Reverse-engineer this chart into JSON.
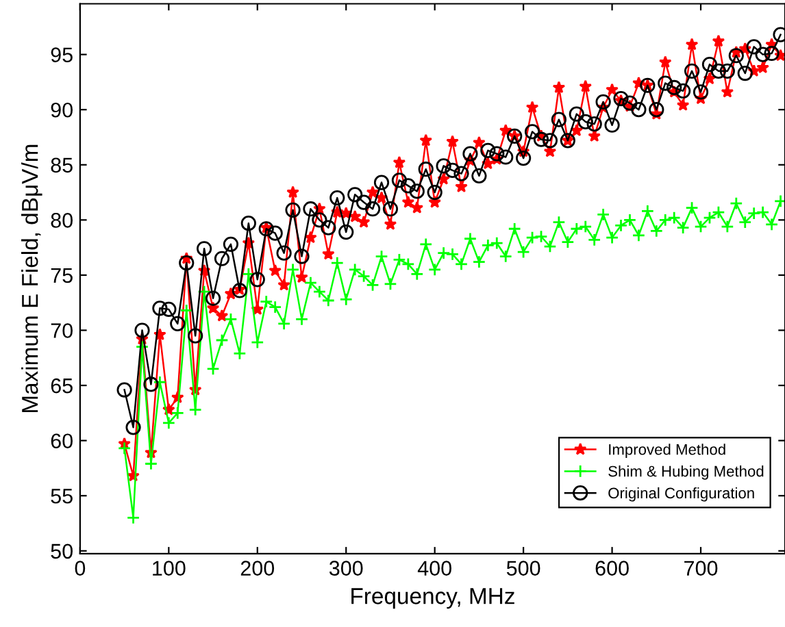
{
  "chart_data": {
    "type": "line",
    "xlabel": "Frequency, MHz",
    "ylabel": "Maximum E Field, dBμV/m",
    "xlim": [
      0,
      795
    ],
    "xticks": [
      0,
      100,
      200,
      300,
      400,
      500,
      600,
      700
    ],
    "ylim": [
      49.75,
      99.6
    ],
    "yticks": [
      50,
      55,
      60,
      65,
      70,
      75,
      80,
      85,
      90,
      95
    ],
    "grid": false,
    "legend": "bottom right",
    "line_style": "solid",
    "x": [
      50,
      60,
      70,
      80,
      90,
      100,
      110,
      120,
      130,
      140,
      150,
      160,
      170,
      180,
      190,
      200,
      210,
      220,
      230,
      240,
      250,
      260,
      270,
      280,
      290,
      300,
      310,
      320,
      330,
      340,
      350,
      360,
      370,
      380,
      390,
      400,
      410,
      420,
      430,
      440,
      450,
      460,
      470,
      480,
      490,
      500,
      510,
      520,
      530,
      540,
      550,
      560,
      570,
      580,
      590,
      600,
      610,
      620,
      630,
      640,
      650,
      660,
      670,
      680,
      690,
      700,
      710,
      720,
      730,
      740,
      750,
      760,
      770,
      780,
      790
    ],
    "series": [
      {
        "name": "Improved Method",
        "color": "#ff0000",
        "marker": "star",
        "values": [
          59.7,
          56.8,
          69.2,
          58.9,
          69.6,
          62.8,
          63.9,
          76.5,
          64.6,
          75.4,
          72.0,
          71.3,
          73.3,
          73.7,
          77.9,
          71.9,
          79.3,
          75.4,
          74.1,
          82.5,
          74.8,
          78.4,
          81.0,
          76.9,
          80.7,
          80.6,
          80.3,
          79.8,
          82.5,
          82.0,
          79.6,
          85.2,
          81.6,
          81.1,
          87.2,
          81.6,
          83.7,
          87.1,
          83.0,
          85.4,
          87.0,
          85.1,
          85.5,
          88.1,
          87.6,
          86.2,
          90.2,
          87.6,
          86.2,
          92.0,
          87.2,
          88.1,
          92.1,
          87.6,
          90.2,
          91.8,
          90.8,
          90.3,
          92.4,
          92.2,
          89.6,
          94.3,
          91.6,
          90.4,
          95.9,
          91.0,
          92.8,
          96.2,
          91.6,
          95.2,
          95.5,
          93.5,
          93.8,
          95.9,
          94.9
        ]
      },
      {
        "name": "Shim & Hubing Method",
        "color": "#00ff00",
        "marker": "cross",
        "values": [
          59.3,
          53.0,
          68.5,
          57.9,
          65.3,
          61.6,
          62.5,
          71.8,
          62.8,
          73.5,
          66.5,
          69.1,
          71.0,
          67.9,
          75.1,
          68.9,
          72.6,
          72.1,
          70.6,
          75.5,
          71.0,
          74.3,
          73.5,
          72.7,
          76.1,
          72.8,
          75.5,
          74.9,
          74.1,
          76.7,
          74.2,
          76.4,
          76.0,
          75.1,
          77.8,
          75.5,
          77.0,
          76.9,
          76.0,
          78.3,
          76.2,
          77.7,
          77.9,
          76.7,
          79.2,
          77.1,
          78.4,
          78.5,
          77.6,
          79.8,
          78.0,
          79.2,
          79.4,
          78.2,
          80.5,
          78.4,
          79.5,
          80.0,
          78.6,
          80.8,
          79.0,
          80.0,
          80.2,
          79.3,
          81.1,
          79.4,
          80.2,
          80.7,
          79.4,
          81.5,
          79.8,
          80.6,
          80.7,
          79.6,
          81.7
        ]
      },
      {
        "name": "Original Configuration",
        "color": "#000000",
        "marker": "circle",
        "values": [
          64.6,
          61.2,
          70.0,
          65.1,
          72.0,
          71.9,
          70.6,
          76.1,
          69.5,
          77.4,
          72.9,
          76.5,
          77.8,
          73.6,
          79.7,
          74.6,
          79.2,
          78.8,
          77.0,
          80.9,
          76.7,
          81.0,
          80.0,
          79.3,
          82.0,
          78.9,
          82.3,
          81.6,
          81.0,
          83.4,
          81.0,
          83.6,
          83.1,
          82.6,
          84.6,
          82.5,
          84.9,
          84.5,
          84.2,
          86.0,
          84.0,
          86.3,
          86.0,
          85.7,
          87.6,
          85.6,
          88.0,
          87.3,
          87.2,
          89.1,
          87.2,
          89.6,
          88.9,
          88.7,
          90.7,
          88.6,
          91.0,
          90.6,
          90.0,
          92.2,
          90.0,
          92.4,
          92.0,
          91.7,
          93.5,
          91.6,
          94.1,
          93.5,
          93.5,
          94.9,
          93.3,
          95.7,
          95.0,
          95.1,
          96.8
        ]
      }
    ]
  }
}
